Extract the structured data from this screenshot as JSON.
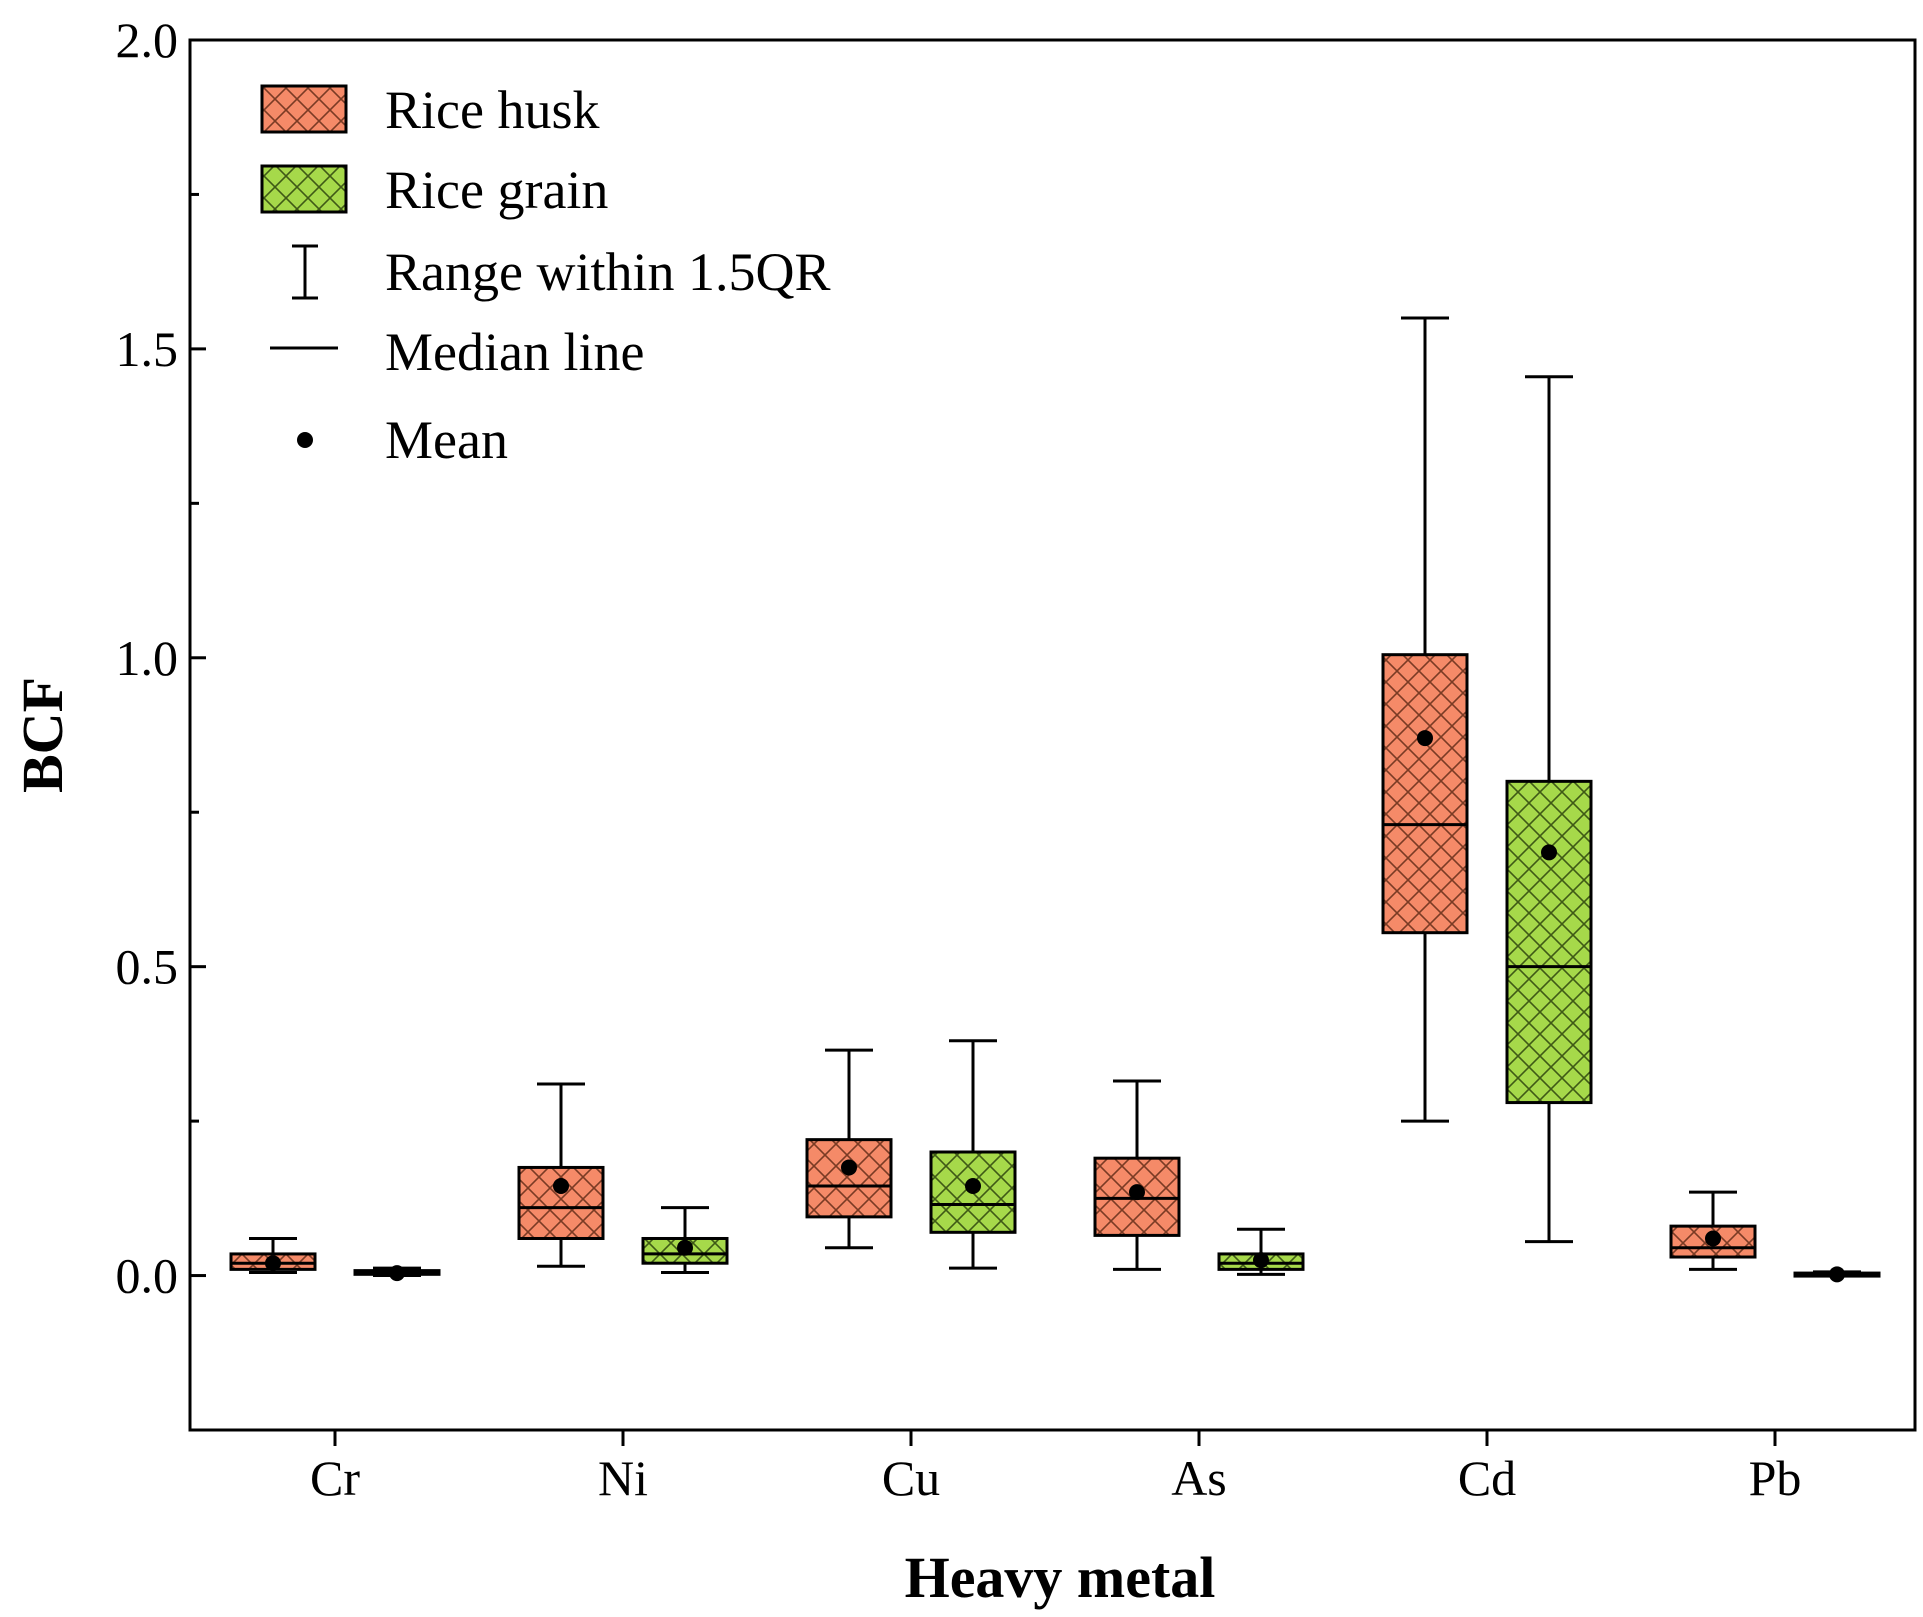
{
  "chart_data": {
    "type": "box",
    "xlabel": "Heavy metal",
    "ylabel": "BCF",
    "ylim": [
      -0.25,
      2.0
    ],
    "yticks": [
      "0.0",
      "0.5",
      "1.0",
      "1.5",
      "2.0"
    ],
    "categories": [
      "Cr",
      "Ni",
      "Cu",
      "As",
      "Cd",
      "Pb"
    ],
    "series": [
      {
        "name": "Rice husk",
        "color": "#F58A68",
        "boxes": [
          {
            "min": 0.005,
            "q1": 0.01,
            "median": 0.02,
            "q3": 0.035,
            "max": 0.06,
            "mean": 0.02
          },
          {
            "min": 0.015,
            "q1": 0.06,
            "median": 0.11,
            "q3": 0.175,
            "max": 0.31,
            "mean": 0.145
          },
          {
            "min": 0.045,
            "q1": 0.095,
            "median": 0.145,
            "q3": 0.22,
            "max": 0.365,
            "mean": 0.175
          },
          {
            "min": 0.01,
            "q1": 0.065,
            "median": 0.125,
            "q3": 0.19,
            "max": 0.315,
            "mean": 0.135
          },
          {
            "min": 0.25,
            "q1": 0.555,
            "median": 0.73,
            "q3": 1.005,
            "max": 1.55,
            "mean": 0.87
          },
          {
            "min": 0.01,
            "q1": 0.03,
            "median": 0.045,
            "q3": 0.08,
            "max": 0.135,
            "mean": 0.06
          }
        ]
      },
      {
        "name": "Rice grain",
        "color": "#A6D94A",
        "boxes": [
          {
            "min": 0.0,
            "q1": 0.002,
            "median": 0.004,
            "q3": 0.008,
            "max": 0.012,
            "mean": 0.004
          },
          {
            "min": 0.005,
            "q1": 0.02,
            "median": 0.035,
            "q3": 0.06,
            "max": 0.11,
            "mean": 0.045
          },
          {
            "min": 0.012,
            "q1": 0.07,
            "median": 0.115,
            "q3": 0.2,
            "max": 0.38,
            "mean": 0.145
          },
          {
            "min": 0.002,
            "q1": 0.01,
            "median": 0.02,
            "q3": 0.035,
            "max": 0.075,
            "mean": 0.025
          },
          {
            "min": 0.055,
            "q1": 0.28,
            "median": 0.5,
            "q3": 0.8,
            "max": 1.455,
            "mean": 0.685
          },
          {
            "min": 0.0,
            "q1": 0.001,
            "median": 0.002,
            "q3": 0.004,
            "max": 0.006,
            "mean": 0.002
          }
        ]
      }
    ],
    "legend": {
      "position": "top-left",
      "items": [
        {
          "label": "Rice husk",
          "kind": "box-husk"
        },
        {
          "label": "Rice grain",
          "kind": "box-grain"
        },
        {
          "label": "Range within 1.5QR",
          "kind": "whisker"
        },
        {
          "label": "Median line",
          "kind": "median"
        },
        {
          "label": "Mean",
          "kind": "mean"
        }
      ]
    },
    "grid": false
  }
}
